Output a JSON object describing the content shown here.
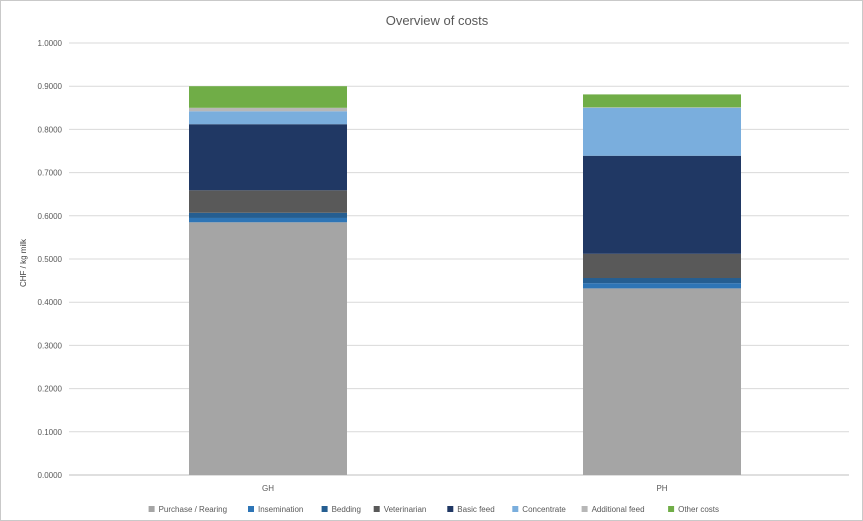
{
  "chart_data": {
    "type": "bar",
    "stacked": true,
    "title": "Overview of costs",
    "xlabel": "",
    "ylabel": "CHF / kg milk",
    "ylim": [
      0,
      1.0
    ],
    "yticks": [
      "0.0000",
      "0.1000",
      "0.2000",
      "0.3000",
      "0.4000",
      "0.5000",
      "0.6000",
      "0.7000",
      "0.8000",
      "0.9000",
      "1.0000"
    ],
    "categories": [
      "GH",
      "PH"
    ],
    "grid": true,
    "legend_position": "bottom",
    "series": [
      {
        "name": "Purchase / Rearing",
        "color": "#a5a5a5",
        "values": [
          0.585,
          0.432
        ]
      },
      {
        "name": "Insemination",
        "color": "#2e75b6",
        "values": [
          0.01,
          0.012
        ]
      },
      {
        "name": "Bedding",
        "color": "#255e91",
        "values": [
          0.012,
          0.012
        ]
      },
      {
        "name": "Veterinarian",
        "color": "#595959",
        "values": [
          0.052,
          0.056
        ]
      },
      {
        "name": "Basic feed",
        "color": "#203864",
        "values": [
          0.153,
          0.227
        ]
      },
      {
        "name": "Concentrate",
        "color": "#7aaedd",
        "values": [
          0.03,
          0.111
        ]
      },
      {
        "name": "Additional feed",
        "color": "#b7b7b7",
        "values": [
          0.008,
          0.001
        ]
      },
      {
        "name": "Other costs",
        "color": "#70ad47",
        "values": [
          0.05,
          0.03
        ]
      }
    ]
  }
}
